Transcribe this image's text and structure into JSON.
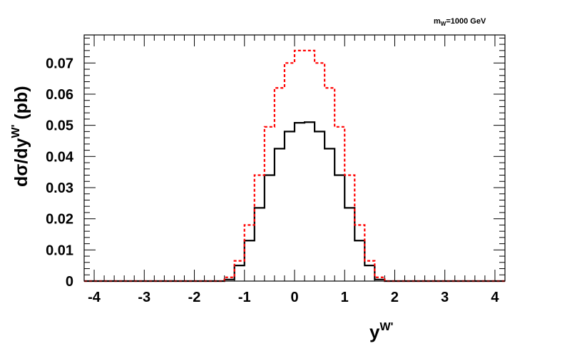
{
  "chart_data": {
    "type": "line",
    "annotation": {
      "main": "m",
      "sub": "W",
      "rest": "=1000 GeV"
    },
    "xlabel": {
      "main": "y",
      "sup": "W'"
    },
    "ylabel": {
      "main": "dσ/dy",
      "sup": "W'",
      "rest": " (pb)"
    },
    "xlim": [
      -4.2,
      4.2
    ],
    "ylim": [
      0,
      0.079
    ],
    "xticks": [
      "-4",
      "-3",
      "-2",
      "-1",
      "0",
      "1",
      "2",
      "3",
      "4"
    ],
    "yticks": [
      "0",
      "0.01",
      "0.02",
      "0.03",
      "0.04",
      "0.05",
      "0.06",
      "0.07"
    ],
    "bin_edges": [
      -4.2,
      -4.0,
      -3.8,
      -3.6,
      -3.4,
      -3.2,
      -3.0,
      -2.8,
      -2.6,
      -2.4,
      -2.2,
      -2.0,
      -1.8,
      -1.6,
      -1.4,
      -1.2,
      -1.0,
      -0.8,
      -0.6,
      -0.4,
      -0.2,
      0.0,
      0.2,
      0.4,
      0.6,
      0.8,
      1.0,
      1.2,
      1.4,
      1.6,
      1.8,
      2.0,
      2.2,
      2.4,
      2.6,
      2.8,
      3.0,
      3.2,
      3.4,
      3.6,
      3.8,
      4.0,
      4.2
    ],
    "series": [
      {
        "color": "#000000",
        "style": "solid",
        "values": [
          0,
          0,
          0,
          0,
          0,
          0,
          0,
          0,
          0,
          0,
          0,
          0,
          0,
          0,
          0.0005,
          0.005,
          0.013,
          0.0235,
          0.034,
          0.0425,
          0.048,
          0.0508,
          0.051,
          0.048,
          0.0425,
          0.034,
          0.0235,
          0.013,
          0.005,
          0.0005,
          0,
          0,
          0,
          0,
          0,
          0,
          0,
          0,
          0,
          0,
          0,
          0
        ]
      },
      {
        "color": "#ff0000",
        "style": "dashed",
        "values": [
          0,
          0,
          0,
          0,
          0,
          0,
          0,
          0,
          0,
          0,
          0,
          0,
          0,
          0,
          0.0012,
          0.0065,
          0.018,
          0.034,
          0.0495,
          0.062,
          0.07,
          0.074,
          0.074,
          0.07,
          0.062,
          0.0495,
          0.034,
          0.018,
          0.0065,
          0.0012,
          0,
          0,
          0,
          0,
          0,
          0,
          0,
          0,
          0,
          0,
          0,
          0
        ]
      }
    ]
  }
}
